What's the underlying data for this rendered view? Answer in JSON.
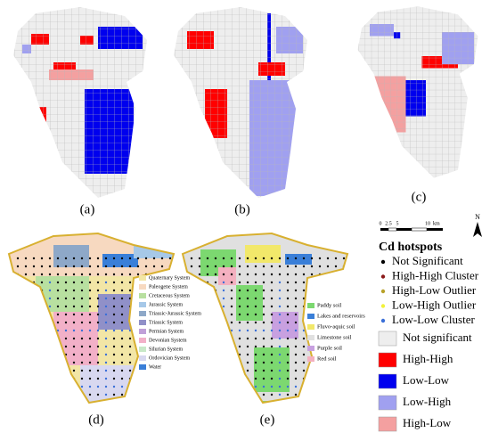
{
  "panels": [
    {
      "label": "(a)"
    },
    {
      "label": "(b)"
    },
    {
      "label": "(c)"
    },
    {
      "label": "(d)"
    },
    {
      "label": "(e)"
    }
  ],
  "scale_bar": {
    "labels": [
      "0",
      "2.5",
      "5",
      "10"
    ],
    "unit": "km"
  },
  "north": "N",
  "hotspot_legend": {
    "title": "Cd hotspots",
    "points": [
      {
        "name": "Not Significant",
        "color": "#000000"
      },
      {
        "name": "High-High Cluster",
        "color": "#8b1a1a"
      },
      {
        "name": "High-Low Outlier",
        "color": "#b8a22a"
      },
      {
        "name": "Low-High Outlier",
        "color": "#f2f23a"
      },
      {
        "name": "Low-Low Cluster",
        "color": "#3a6fd8"
      }
    ],
    "classes": [
      {
        "name": "Not significant",
        "color": "#eeeeee"
      },
      {
        "name": "High-High",
        "color": "#ff0000"
      },
      {
        "name": "Low-Low",
        "color": "#0000ee"
      },
      {
        "name": "Low-High",
        "color": "#a0a0f0"
      },
      {
        "name": "High-Low",
        "color": "#f4a0a0"
      }
    ]
  },
  "geology_legend": [
    {
      "name": "Quaternary System",
      "color": "#f2e6a6"
    },
    {
      "name": "Paleogene System",
      "color": "#f7d9c0"
    },
    {
      "name": "Cretaceous System",
      "color": "#b8e0a0"
    },
    {
      "name": "Jurassic System",
      "color": "#a6c8e8"
    },
    {
      "name": "Triassic-Jurassic System",
      "color": "#8ea8c8"
    },
    {
      "name": "Triassic System",
      "color": "#9090c8"
    },
    {
      "name": "Permian System",
      "color": "#c0a0d8"
    },
    {
      "name": "Devonian System",
      "color": "#f2b0c8"
    },
    {
      "name": "Silurian System",
      "color": "#c8e8c8"
    },
    {
      "name": "Ordovician System",
      "color": "#d8d8f0"
    },
    {
      "name": "Water",
      "color": "#3a7fd8"
    }
  ],
  "soil_legend": [
    {
      "name": "Paddy soil",
      "color": "#7cd870"
    },
    {
      "name": "Lakes and reservoirs",
      "color": "#3a7fd8"
    },
    {
      "name": "Fluvo-aquic soil",
      "color": "#f2e86a"
    },
    {
      "name": "Limestone soil",
      "color": "#e0e0e0"
    },
    {
      "name": "Purple soil",
      "color": "#c8a0e0"
    },
    {
      "name": "Red soil",
      "color": "#f4b0c0"
    }
  ]
}
